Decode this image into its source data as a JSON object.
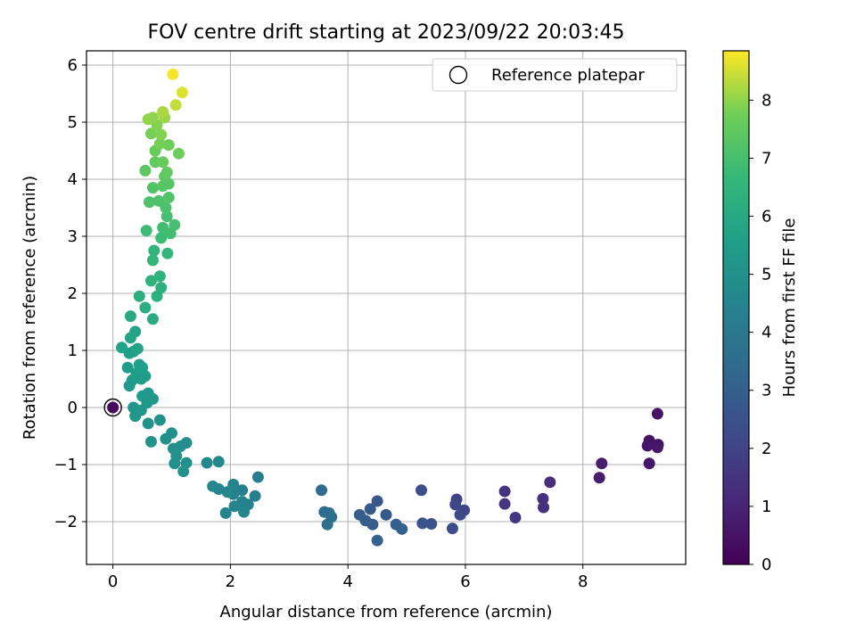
{
  "chart_data": {
    "type": "scatter",
    "title": "FOV centre drift starting at 2023/09/22 20:03:45",
    "xlabel": "Angular distance from reference (arcmin)",
    "ylabel": "Rotation from reference (arcmin)",
    "xlim": [
      -0.45,
      9.75
    ],
    "ylim": [
      -2.75,
      6.25
    ],
    "xticks": [
      0,
      2,
      4,
      6,
      8
    ],
    "yticks": [
      -2,
      -1,
      0,
      1,
      2,
      3,
      4,
      5,
      6
    ],
    "grid": true,
    "legend": {
      "placement": "top-right",
      "entries": [
        "Reference platepar"
      ]
    },
    "reference_point": {
      "x": 0,
      "y": 0,
      "marker": "open-circle"
    },
    "colorbar": {
      "label": "Hours from first FF file",
      "colormap": "viridis",
      "range": [
        0,
        8.85
      ],
      "ticks": [
        0,
        1,
        2,
        3,
        4,
        5,
        6,
        7,
        8
      ]
    },
    "points": [
      {
        "x": 0.0,
        "y": 0.0,
        "c": 0.2
      },
      {
        "x": 9.27,
        "y": -0.11,
        "c": 0.5
      },
      {
        "x": 9.13,
        "y": -0.58,
        "c": 0.5
      },
      {
        "x": 9.1,
        "y": -0.67,
        "c": 0.6
      },
      {
        "x": 9.28,
        "y": -0.65,
        "c": 0.5
      },
      {
        "x": 9.27,
        "y": -0.7,
        "c": 0.6
      },
      {
        "x": 9.13,
        "y": -0.98,
        "c": 0.6
      },
      {
        "x": 8.32,
        "y": -0.98,
        "c": 0.8
      },
      {
        "x": 8.28,
        "y": -1.23,
        "c": 0.8
      },
      {
        "x": 7.44,
        "y": -1.31,
        "c": 1.3
      },
      {
        "x": 7.32,
        "y": -1.6,
        "c": 1.4
      },
      {
        "x": 7.33,
        "y": -1.75,
        "c": 1.4
      },
      {
        "x": 6.67,
        "y": -1.47,
        "c": 1.5
      },
      {
        "x": 6.67,
        "y": -1.69,
        "c": 1.6
      },
      {
        "x": 6.85,
        "y": -1.93,
        "c": 1.6
      },
      {
        "x": 5.85,
        "y": -1.61,
        "c": 2.0
      },
      {
        "x": 5.83,
        "y": -1.7,
        "c": 2.1
      },
      {
        "x": 5.98,
        "y": -1.8,
        "c": 2.1
      },
      {
        "x": 5.91,
        "y": -1.88,
        "c": 2.2
      },
      {
        "x": 5.78,
        "y": -2.12,
        "c": 2.3
      },
      {
        "x": 5.25,
        "y": -1.45,
        "c": 2.4
      },
      {
        "x": 5.27,
        "y": -2.03,
        "c": 2.5
      },
      {
        "x": 5.42,
        "y": -2.04,
        "c": 2.5
      },
      {
        "x": 4.5,
        "y": -1.64,
        "c": 2.7
      },
      {
        "x": 4.38,
        "y": -1.78,
        "c": 2.8
      },
      {
        "x": 4.65,
        "y": -1.88,
        "c": 2.8
      },
      {
        "x": 4.2,
        "y": -1.88,
        "c": 2.9
      },
      {
        "x": 4.3,
        "y": -1.98,
        "c": 2.9
      },
      {
        "x": 4.42,
        "y": -2.05,
        "c": 2.9
      },
      {
        "x": 4.82,
        "y": -2.05,
        "c": 3.0
      },
      {
        "x": 4.92,
        "y": -2.13,
        "c": 3.0
      },
      {
        "x": 4.5,
        "y": -2.33,
        "c": 3.1
      },
      {
        "x": 3.55,
        "y": -1.45,
        "c": 3.4
      },
      {
        "x": 3.6,
        "y": -1.83,
        "c": 3.5
      },
      {
        "x": 3.68,
        "y": -1.85,
        "c": 3.5
      },
      {
        "x": 3.72,
        "y": -1.92,
        "c": 3.6
      },
      {
        "x": 3.65,
        "y": -2.05,
        "c": 3.6
      },
      {
        "x": 2.47,
        "y": -1.22,
        "c": 4.2
      },
      {
        "x": 2.2,
        "y": -1.45,
        "c": 4.3
      },
      {
        "x": 2.42,
        "y": -1.55,
        "c": 4.3
      },
      {
        "x": 2.05,
        "y": -1.52,
        "c": 4.4
      },
      {
        "x": 2.2,
        "y": -1.65,
        "c": 4.4
      },
      {
        "x": 2.3,
        "y": -1.7,
        "c": 4.4
      },
      {
        "x": 2.07,
        "y": -1.73,
        "c": 4.5
      },
      {
        "x": 2.23,
        "y": -1.83,
        "c": 4.5
      },
      {
        "x": 1.92,
        "y": -1.85,
        "c": 4.5
      },
      {
        "x": 2.05,
        "y": -1.35,
        "c": 4.5
      },
      {
        "x": 1.8,
        "y": -1.43,
        "c": 4.6
      },
      {
        "x": 1.95,
        "y": -1.48,
        "c": 4.6
      },
      {
        "x": 1.7,
        "y": -1.38,
        "c": 4.6
      },
      {
        "x": 1.8,
        "y": -0.95,
        "c": 4.7
      },
      {
        "x": 1.6,
        "y": -0.97,
        "c": 4.7
      },
      {
        "x": 1.25,
        "y": -0.62,
        "c": 4.9
      },
      {
        "x": 1.15,
        "y": -0.68,
        "c": 4.9
      },
      {
        "x": 1.03,
        "y": -0.72,
        "c": 4.9
      },
      {
        "x": 1.0,
        "y": -0.45,
        "c": 5.0
      },
      {
        "x": 0.9,
        "y": -0.55,
        "c": 5.0
      },
      {
        "x": 1.08,
        "y": -0.85,
        "c": 5.0
      },
      {
        "x": 1.25,
        "y": -0.97,
        "c": 5.0
      },
      {
        "x": 1.05,
        "y": -0.98,
        "c": 5.0
      },
      {
        "x": 1.2,
        "y": -1.12,
        "c": 5.1
      },
      {
        "x": 0.65,
        "y": -0.6,
        "c": 5.1
      },
      {
        "x": 0.6,
        "y": -0.28,
        "c": 5.1
      },
      {
        "x": 0.8,
        "y": -0.22,
        "c": 5.1
      },
      {
        "x": 0.38,
        "y": -0.15,
        "c": 5.2
      },
      {
        "x": 0.35,
        "y": 0.0,
        "c": 5.2
      },
      {
        "x": 0.48,
        "y": -0.05,
        "c": 5.2
      },
      {
        "x": 0.58,
        "y": 0.08,
        "c": 5.3
      },
      {
        "x": 0.68,
        "y": 0.15,
        "c": 5.3
      },
      {
        "x": 0.6,
        "y": 0.25,
        "c": 5.3
      },
      {
        "x": 0.5,
        "y": 0.2,
        "c": 5.4
      },
      {
        "x": 0.28,
        "y": 0.38,
        "c": 5.4
      },
      {
        "x": 0.33,
        "y": 0.48,
        "c": 5.4
      },
      {
        "x": 0.48,
        "y": 0.5,
        "c": 5.5
      },
      {
        "x": 0.55,
        "y": 0.55,
        "c": 5.5
      },
      {
        "x": 0.4,
        "y": 0.6,
        "c": 5.5
      },
      {
        "x": 0.25,
        "y": 0.7,
        "c": 5.5
      },
      {
        "x": 0.45,
        "y": 0.75,
        "c": 5.6
      },
      {
        "x": 0.5,
        "y": 0.7,
        "c": 5.6
      },
      {
        "x": 0.28,
        "y": 0.95,
        "c": 5.6
      },
      {
        "x": 0.35,
        "y": 0.98,
        "c": 5.6
      },
      {
        "x": 0.42,
        "y": 1.03,
        "c": 5.7
      },
      {
        "x": 0.15,
        "y": 1.05,
        "c": 5.7
      },
      {
        "x": 0.3,
        "y": 1.22,
        "c": 5.8
      },
      {
        "x": 0.38,
        "y": 1.33,
        "c": 5.8
      },
      {
        "x": 0.3,
        "y": 1.6,
        "c": 6.0
      },
      {
        "x": 0.68,
        "y": 1.55,
        "c": 6.1
      },
      {
        "x": 0.55,
        "y": 1.75,
        "c": 6.2
      },
      {
        "x": 0.45,
        "y": 1.95,
        "c": 6.2
      },
      {
        "x": 0.75,
        "y": 1.95,
        "c": 6.3
      },
      {
        "x": 0.82,
        "y": 2.1,
        "c": 6.3
      },
      {
        "x": 0.65,
        "y": 2.22,
        "c": 6.4
      },
      {
        "x": 0.8,
        "y": 2.3,
        "c": 6.4
      },
      {
        "x": 0.68,
        "y": 2.58,
        "c": 6.5
      },
      {
        "x": 0.7,
        "y": 2.75,
        "c": 6.5
      },
      {
        "x": 0.93,
        "y": 2.7,
        "c": 6.6
      },
      {
        "x": 0.57,
        "y": 3.1,
        "c": 6.8
      },
      {
        "x": 0.82,
        "y": 2.97,
        "c": 6.8
      },
      {
        "x": 0.98,
        "y": 3.05,
        "c": 6.9
      },
      {
        "x": 0.85,
        "y": 3.15,
        "c": 6.9
      },
      {
        "x": 1.05,
        "y": 3.2,
        "c": 7.0
      },
      {
        "x": 0.92,
        "y": 3.35,
        "c": 7.0
      },
      {
        "x": 0.9,
        "y": 3.5,
        "c": 7.1
      },
      {
        "x": 0.62,
        "y": 3.6,
        "c": 7.1
      },
      {
        "x": 0.78,
        "y": 3.62,
        "c": 7.1
      },
      {
        "x": 0.95,
        "y": 3.68,
        "c": 7.2
      },
      {
        "x": 0.68,
        "y": 3.85,
        "c": 7.2
      },
      {
        "x": 0.85,
        "y": 3.88,
        "c": 7.3
      },
      {
        "x": 0.95,
        "y": 3.92,
        "c": 7.3
      },
      {
        "x": 0.55,
        "y": 4.15,
        "c": 7.4
      },
      {
        "x": 0.88,
        "y": 4.05,
        "c": 7.4
      },
      {
        "x": 0.92,
        "y": 4.12,
        "c": 7.5
      },
      {
        "x": 0.72,
        "y": 4.3,
        "c": 7.5
      },
      {
        "x": 0.85,
        "y": 4.3,
        "c": 7.6
      },
      {
        "x": 0.72,
        "y": 4.5,
        "c": 7.6
      },
      {
        "x": 0.95,
        "y": 4.6,
        "c": 7.7
      },
      {
        "x": 1.12,
        "y": 4.45,
        "c": 7.7
      },
      {
        "x": 0.8,
        "y": 4.62,
        "c": 7.8
      },
      {
        "x": 0.65,
        "y": 4.8,
        "c": 7.8
      },
      {
        "x": 0.82,
        "y": 4.78,
        "c": 7.9
      },
      {
        "x": 0.75,
        "y": 4.95,
        "c": 7.9
      },
      {
        "x": 0.6,
        "y": 5.05,
        "c": 8.0
      },
      {
        "x": 0.68,
        "y": 5.08,
        "c": 8.0
      },
      {
        "x": 0.88,
        "y": 5.08,
        "c": 8.1
      },
      {
        "x": 0.85,
        "y": 5.18,
        "c": 8.2
      },
      {
        "x": 1.07,
        "y": 5.3,
        "c": 8.4
      },
      {
        "x": 1.18,
        "y": 5.52,
        "c": 8.6
      },
      {
        "x": 1.02,
        "y": 5.84,
        "c": 8.8
      }
    ]
  }
}
